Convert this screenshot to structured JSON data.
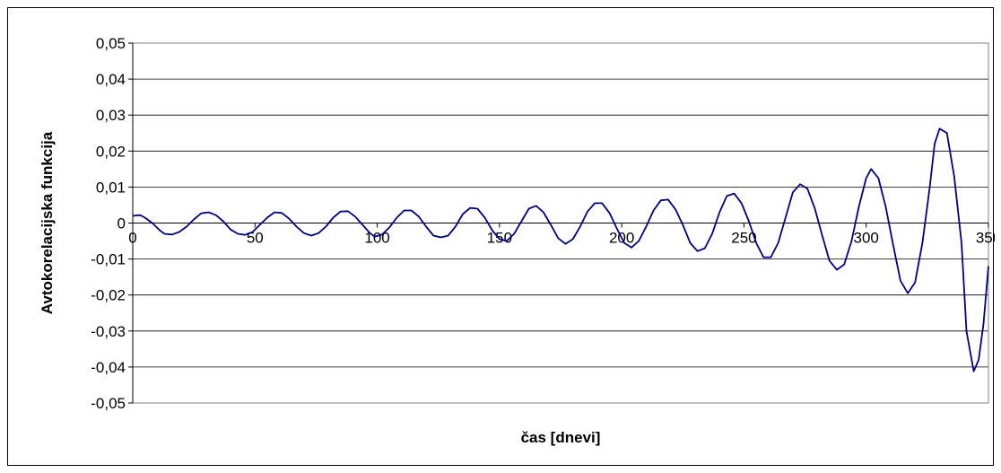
{
  "chart_data": {
    "type": "line",
    "title": "",
    "xlabel": "čas [dnevi]",
    "ylabel": "Avtokorelacijska funkcija",
    "xlim": [
      0,
      350
    ],
    "ylim": [
      -0.05,
      0.05
    ],
    "x_ticks": [
      "0",
      "50",
      "100",
      "150",
      "200",
      "250",
      "300",
      "350"
    ],
    "y_ticks": [
      "0,05",
      "0,04",
      "0,03",
      "0,02",
      "0,01",
      "0",
      "-0,01",
      "-0,02",
      "-0,03",
      "-0,04",
      "-0,05"
    ],
    "grid": "horizontal",
    "legend": "none",
    "series": [
      {
        "color": "#000080",
        "points": [
          [
            0,
            0.002
          ],
          [
            3,
            0.0022
          ],
          [
            5,
            0.0015
          ],
          [
            8,
            0.0
          ],
          [
            11,
            -0.002
          ],
          [
            13,
            -0.003
          ],
          [
            16,
            -0.0032
          ],
          [
            19,
            -0.0025
          ],
          [
            22,
            -0.001
          ],
          [
            25,
            0.001
          ],
          [
            28,
            0.0027
          ],
          [
            31,
            0.003
          ],
          [
            34,
            0.0022
          ],
          [
            37,
            0.0005
          ],
          [
            40,
            -0.0018
          ],
          [
            43,
            -0.003
          ],
          [
            46,
            -0.0033
          ],
          [
            49,
            -0.0025
          ],
          [
            52,
            -0.0005
          ],
          [
            55,
            0.0015
          ],
          [
            58,
            0.003
          ],
          [
            61,
            0.0028
          ],
          [
            64,
            0.0012
          ],
          [
            67,
            -0.001
          ],
          [
            70,
            -0.0028
          ],
          [
            73,
            -0.0035
          ],
          [
            76,
            -0.0028
          ],
          [
            79,
            -0.001
          ],
          [
            82,
            0.0015
          ],
          [
            85,
            0.0032
          ],
          [
            88,
            0.0033
          ],
          [
            91,
            0.0018
          ],
          [
            94,
            -0.0005
          ],
          [
            97,
            -0.0028
          ],
          [
            99,
            -0.0038
          ],
          [
            102,
            -0.0032
          ],
          [
            105,
            -0.0012
          ],
          [
            108,
            0.0015
          ],
          [
            111,
            0.0035
          ],
          [
            114,
            0.0035
          ],
          [
            117,
            0.0018
          ],
          [
            120,
            -0.001
          ],
          [
            123,
            -0.0035
          ],
          [
            126,
            -0.004
          ],
          [
            129,
            -0.0035
          ],
          [
            132,
            -0.001
          ],
          [
            135,
            0.0025
          ],
          [
            138,
            0.0042
          ],
          [
            141,
            0.004
          ],
          [
            144,
            0.0015
          ],
          [
            147,
            -0.002
          ],
          [
            150,
            -0.0045
          ],
          [
            153,
            -0.005
          ],
          [
            156,
            -0.003
          ],
          [
            159,
            0.0005
          ],
          [
            162,
            0.004
          ],
          [
            165,
            0.0048
          ],
          [
            168,
            0.003
          ],
          [
            171,
            -0.0005
          ],
          [
            174,
            -0.0042
          ],
          [
            177,
            -0.0058
          ],
          [
            180,
            -0.0045
          ],
          [
            183,
            -0.001
          ],
          [
            186,
            0.0032
          ],
          [
            189,
            0.0055
          ],
          [
            192,
            0.0055
          ],
          [
            195,
            0.0028
          ],
          [
            198,
            -0.0015
          ],
          [
            201,
            -0.0055
          ],
          [
            204,
            -0.0068
          ],
          [
            207,
            -0.005
          ],
          [
            210,
            -0.001
          ],
          [
            213,
            0.0035
          ],
          [
            216,
            0.0063
          ],
          [
            219,
            0.0065
          ],
          [
            222,
            0.0038
          ],
          [
            225,
            -0.0005
          ],
          [
            228,
            -0.0055
          ],
          [
            231,
            -0.0078
          ],
          [
            234,
            -0.007
          ],
          [
            237,
            -0.003
          ],
          [
            240,
            0.003
          ],
          [
            243,
            0.0075
          ],
          [
            246,
            0.0082
          ],
          [
            249,
            0.0055
          ],
          [
            252,
            0.0005
          ],
          [
            255,
            -0.0055
          ],
          [
            258,
            -0.0095
          ],
          [
            261,
            -0.0095
          ],
          [
            264,
            -0.0055
          ],
          [
            267,
            0.0015
          ],
          [
            270,
            0.0085
          ],
          [
            273,
            0.0108
          ],
          [
            276,
            0.0095
          ],
          [
            279,
            0.004
          ],
          [
            282,
            -0.0035
          ],
          [
            285,
            -0.0105
          ],
          [
            288,
            -0.013
          ],
          [
            291,
            -0.0115
          ],
          [
            294,
            -0.005
          ],
          [
            297,
            0.0045
          ],
          [
            300,
            0.0125
          ],
          [
            302,
            0.015
          ],
          [
            305,
            0.0125
          ],
          [
            308,
            0.0045
          ],
          [
            311,
            -0.006
          ],
          [
            314,
            -0.016
          ],
          [
            317,
            -0.0195
          ],
          [
            320,
            -0.0165
          ],
          [
            323,
            -0.0055
          ],
          [
            326,
            0.01
          ],
          [
            328,
            0.022
          ],
          [
            330,
            0.0262
          ],
          [
            333,
            0.025
          ],
          [
            336,
            0.013
          ],
          [
            339,
            -0.0055
          ],
          [
            341,
            -0.03
          ],
          [
            344,
            -0.0412
          ],
          [
            346,
            -0.038
          ],
          [
            348,
            -0.028
          ],
          [
            350,
            -0.012
          ]
        ]
      }
    ]
  }
}
